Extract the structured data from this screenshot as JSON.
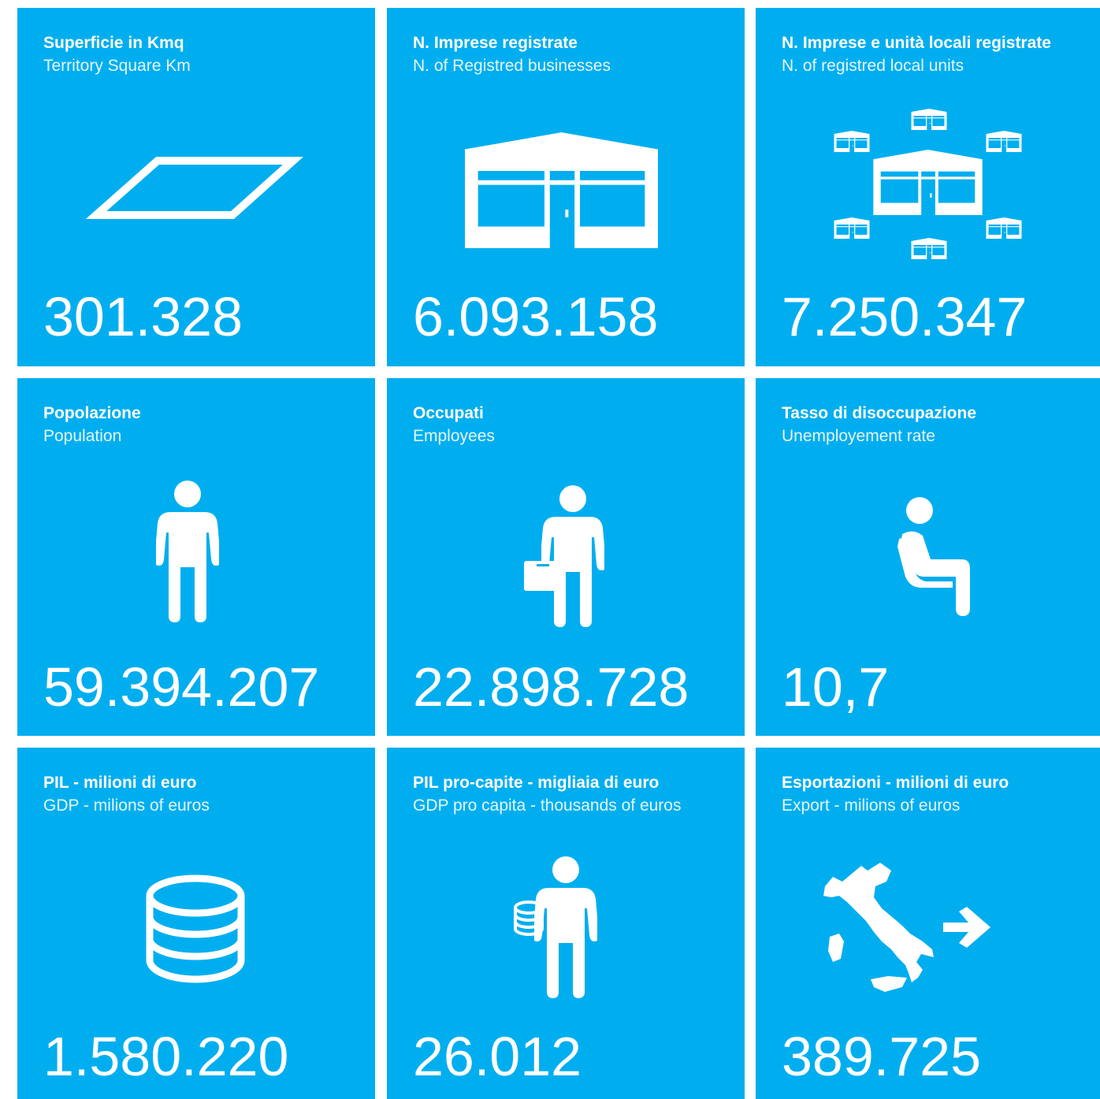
{
  "tiles": [
    {
      "title": "Superficie in Kmq",
      "subtitle": "Territory Square Km",
      "value": "301.328"
    },
    {
      "title": "N. Imprese registrate",
      "subtitle": "N. of Registred businesses",
      "value": "6.093.158"
    },
    {
      "title": "N. Imprese e unità locali registrate",
      "subtitle": "N. of registred local units",
      "value": "7.250.347"
    },
    {
      "title": "Popolazione",
      "subtitle": "Population",
      "value": "59.394.207"
    },
    {
      "title": "Occupati",
      "subtitle": "Employees",
      "value": "22.898.728"
    },
    {
      "title": "Tasso di disoccupazione",
      "subtitle": "Unemployement rate",
      "value": "10,7"
    },
    {
      "title": "PIL - milioni di euro",
      "subtitle": "GDP - milions of euros",
      "value": "1.580.220"
    },
    {
      "title": "PIL pro-capite - migliaia di euro",
      "subtitle": "GDP pro capita - thousands of euros",
      "value": "26.012"
    },
    {
      "title": "Esportazioni - milioni di euro",
      "subtitle": "Export -  milions of euros",
      "value": "389.725"
    }
  ]
}
